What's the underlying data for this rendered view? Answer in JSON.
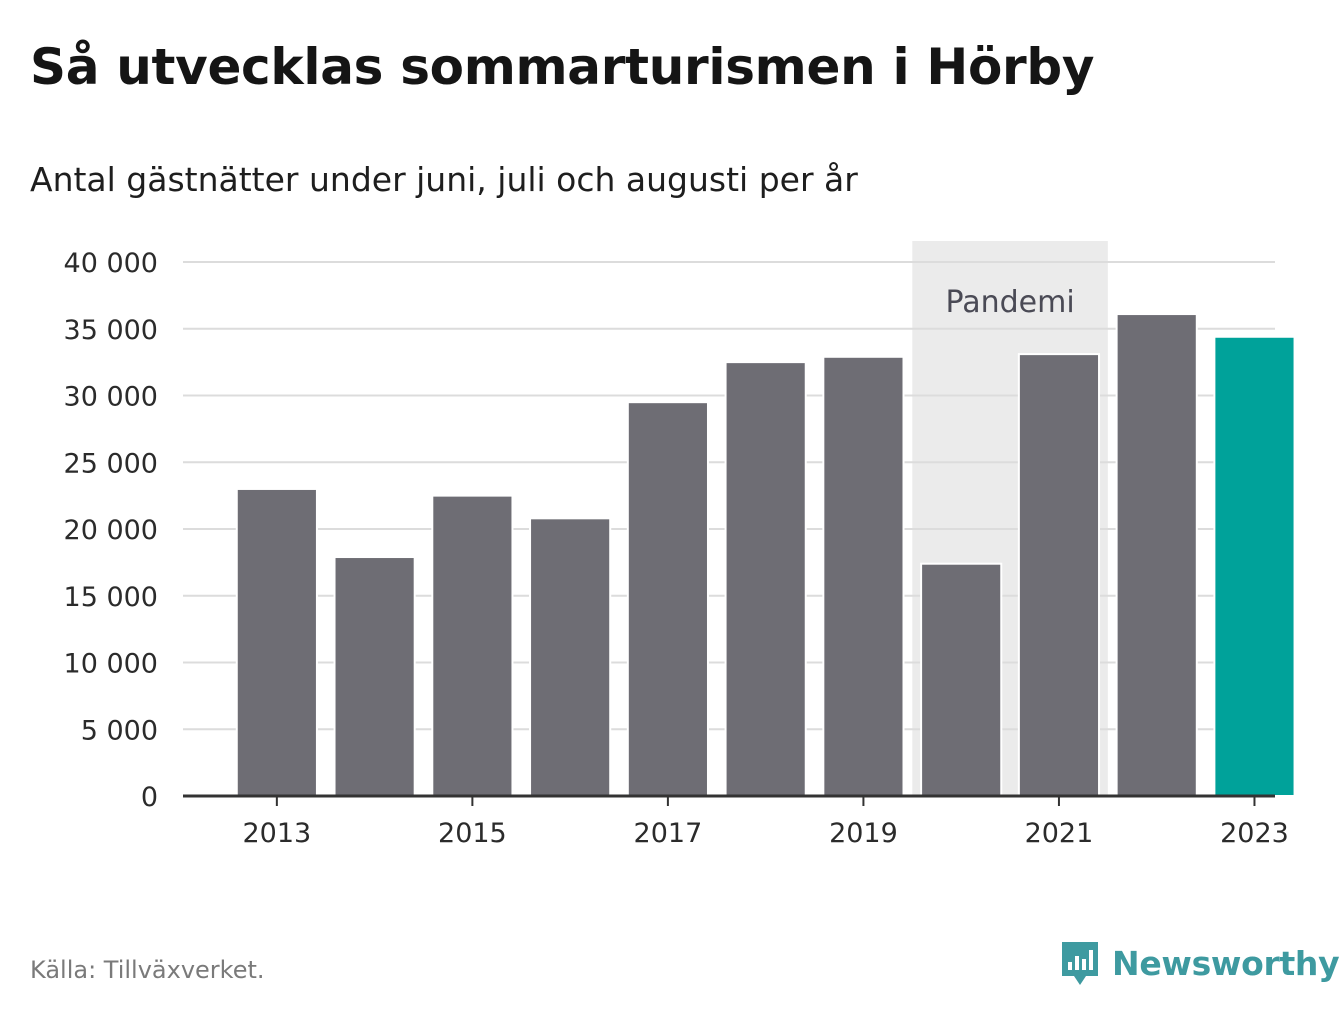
{
  "header": {
    "title": "Så utvecklas sommarturismen i Hörby",
    "subtitle": "Antal gästnätter under juni, juli och augusti per år"
  },
  "footer": {
    "source": "Källa: Tillväxverket.",
    "brand": "Newsworthy"
  },
  "colors": {
    "bar": "#6e6d74",
    "highlight": "#00a29a",
    "band": "#ebebeb",
    "grid": "#dcdcdc",
    "axis": "#333333",
    "brand": "#3e9aa0"
  },
  "chart_data": {
    "type": "bar",
    "categories": [
      "2013",
      "2014",
      "2015",
      "2016",
      "2017",
      "2018",
      "2019",
      "2020",
      "2021",
      "2022",
      "2023"
    ],
    "values": [
      23000,
      17900,
      22500,
      20800,
      29500,
      32500,
      32900,
      17400,
      33100,
      36100,
      34400
    ],
    "highlight_category": "2023",
    "x_tick_labels": [
      "2013",
      "2015",
      "2017",
      "2019",
      "2021",
      "2023"
    ],
    "y_ticks": [
      0,
      5000,
      10000,
      15000,
      20000,
      25000,
      30000,
      35000,
      40000
    ],
    "y_tick_labels": [
      "0",
      "5 000",
      "10 000",
      "15 000",
      "20 000",
      "25 000",
      "30 000",
      "35 000",
      "40 000"
    ],
    "ylim": [
      0,
      40000
    ],
    "grid": true,
    "annotation": {
      "label": "Pandemi",
      "from": "2020",
      "to": "2021"
    }
  }
}
